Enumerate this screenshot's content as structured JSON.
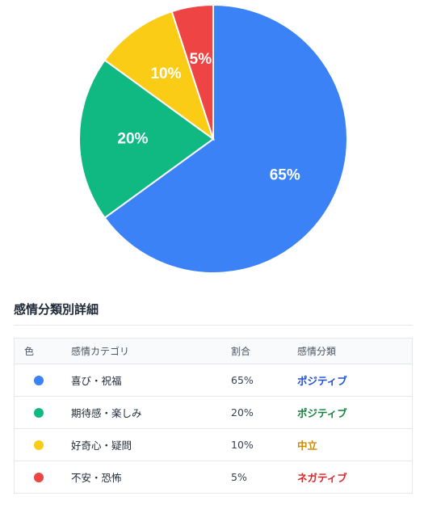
{
  "chart_data": {
    "type": "pie",
    "categories": [
      "喜び・祝福",
      "期待感・楽しみ",
      "好奇心・疑問",
      "不安・恐怖"
    ],
    "values": [
      65,
      20,
      10,
      5
    ],
    "labels": [
      "65%",
      "20%",
      "10%",
      "5%"
    ],
    "colors": [
      "#3b82f6",
      "#10b981",
      "#facc15",
      "#ef4444"
    ],
    "title": "",
    "legend": "none"
  },
  "details": {
    "title": "感情分類別詳細",
    "headers": {
      "color": "色",
      "category": "感情カテゴリ",
      "ratio": "割合",
      "classification": "感情分類"
    },
    "rows": [
      {
        "category": "喜び・祝福",
        "ratio": "65%",
        "classification": "ポジティブ",
        "dot_color": "#3b82f6",
        "class_color": "#1d4ed8"
      },
      {
        "category": "期待感・楽しみ",
        "ratio": "20%",
        "classification": "ポジティブ",
        "dot_color": "#10b981",
        "class_color": "#15803d"
      },
      {
        "category": "好奇心・疑問",
        "ratio": "10%",
        "classification": "中立",
        "dot_color": "#facc15",
        "class_color": "#ca8a04"
      },
      {
        "category": "不安・恐怖",
        "ratio": "5%",
        "classification": "ネガティブ",
        "dot_color": "#ef4444",
        "class_color": "#dc2626"
      }
    ]
  }
}
